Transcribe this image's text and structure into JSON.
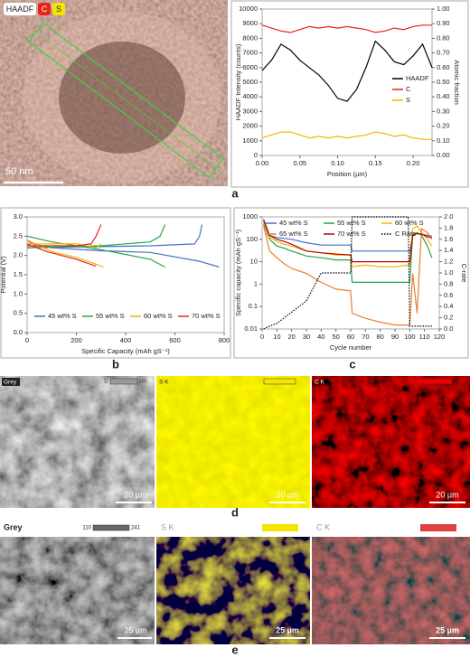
{
  "panel_labels": [
    "a",
    "b",
    "c",
    "d",
    "e"
  ],
  "images": {
    "haadf": {
      "labels": [
        "HAADF",
        "C",
        "S"
      ],
      "scale_bar": "50 nm"
    },
    "d": [
      {
        "title": "Grey",
        "scale_min": "11",
        "scale_max": "255",
        "scale_bar": "20 µm"
      },
      {
        "title": "S K",
        "scale_bar": "20 µm"
      },
      {
        "title": "C K",
        "scale_bar": "20 µm"
      }
    ],
    "e": [
      {
        "title": "Grey",
        "scale_min": "110",
        "scale_max": "241",
        "scale_bar": "25 µm"
      },
      {
        "title": "S K",
        "scale_bar": "25 µm"
      },
      {
        "title": "C K",
        "scale_bar": "25 µm"
      }
    ]
  },
  "chart_data": [
    {
      "type": "line",
      "xlabel": "Position (µm)",
      "ylabel": "HAADF Intensity (counts)",
      "y2label": "Atomic fraction",
      "x": [
        0,
        0.0125,
        0.025,
        0.0375,
        0.05,
        0.0625,
        0.075,
        0.0875,
        0.1,
        0.1125,
        0.125,
        0.1375,
        0.15,
        0.1625,
        0.175,
        0.1875,
        0.2,
        0.2125,
        0.225
      ],
      "xlim": [
        0,
        0.225
      ],
      "xticks": [
        {
          "value": 0,
          "label": "0.00"
        },
        0.05,
        {
          "value": 0.1,
          "label": "0.10"
        },
        0.15,
        {
          "value": 0.2,
          "label": "0.20"
        }
      ],
      "ylim": [
        0,
        10000
      ],
      "yticks": [
        0,
        1000,
        2000,
        3000,
        4000,
        5000,
        6000,
        7000,
        8000,
        9000,
        10000
      ],
      "y2lim": [
        0,
        1
      ],
      "y2ticks": [
        {
          "value": 0,
          "label": "0.00"
        },
        {
          "value": 0.1,
          "label": "0.10"
        },
        {
          "value": 0.2,
          "label": "0.20"
        },
        {
          "value": 0.3,
          "label": "0.30"
        },
        {
          "value": 0.4,
          "label": "0.40"
        },
        {
          "value": 0.5,
          "label": "0.50"
        },
        {
          "value": 0.6,
          "label": "0.60"
        },
        {
          "value": 0.7,
          "label": "0.70"
        },
        {
          "value": 0.8,
          "label": "0.80"
        },
        {
          "value": 0.9,
          "label": "0.90"
        },
        {
          "value": 1,
          "label": "1.00"
        }
      ],
      "legend": "right",
      "series": [
        {
          "name": "HAADF",
          "color": "#000000",
          "values": [
            5800,
            6500,
            7600,
            7200,
            6500,
            6000,
            5500,
            4800,
            3900,
            3700,
            4500,
            6000,
            7800,
            7200,
            6400,
            6200,
            6800,
            7600,
            6000
          ]
        },
        {
          "name": "C",
          "color": "#e8231c",
          "axis": "y2",
          "values": [
            0.89,
            0.87,
            0.85,
            0.84,
            0.86,
            0.88,
            0.87,
            0.88,
            0.87,
            0.88,
            0.87,
            0.86,
            0.84,
            0.85,
            0.87,
            0.86,
            0.88,
            0.89,
            0.89
          ]
        },
        {
          "name": "S",
          "color": "#f5b400",
          "axis": "y2",
          "values": [
            0.12,
            0.14,
            0.16,
            0.16,
            0.14,
            0.12,
            0.13,
            0.12,
            0.13,
            0.12,
            0.13,
            0.14,
            0.16,
            0.15,
            0.13,
            0.14,
            0.12,
            0.11,
            0.11
          ]
        }
      ]
    },
    {
      "type": "line",
      "xlabel": "Specific Capacity (mAh gS⁻¹)",
      "ylabel": "Potential (V)",
      "xlim": [
        0,
        800
      ],
      "xticks": [
        0,
        200,
        400,
        600,
        800
      ],
      "ylim": [
        0,
        3
      ],
      "yticks": [
        {
          "value": 0,
          "label": "0.0"
        },
        0.5,
        {
          "value": 1,
          "label": "1.0"
        },
        1.5,
        {
          "value": 2,
          "label": "2.0"
        },
        2.5,
        {
          "value": 3,
          "label": "3.0"
        }
      ],
      "legend": "bottom",
      "series": [
        {
          "name": "45 wt% S",
          "color": "#4472c4",
          "x": [
            0,
            20,
            100,
            300,
            500,
            700,
            780,
            null,
            0,
            200,
            500,
            680,
            700,
            710
          ],
          "values": [
            2.4,
            2.3,
            2.2,
            2.12,
            2.08,
            1.85,
            1.7,
            null,
            2.2,
            2.22,
            2.25,
            2.3,
            2.5,
            2.8
          ]
        },
        {
          "name": "55 wt% S",
          "color": "#22a34a",
          "x": [
            0,
            100,
            300,
            500,
            560,
            null,
            0,
            300,
            500,
            540,
            560
          ],
          "values": [
            2.5,
            2.35,
            2.15,
            1.9,
            1.7,
            null,
            2.2,
            2.25,
            2.35,
            2.5,
            2.8
          ]
        },
        {
          "name": "60 wt% S",
          "color": "#f5b400",
          "x": [
            0,
            100,
            200,
            290,
            310,
            null,
            0,
            200,
            280,
            300
          ],
          "values": [
            2.4,
            2.1,
            1.95,
            1.75,
            1.7,
            null,
            2.3,
            2.3,
            2.2,
            2.3
          ]
        },
        {
          "name": "70 wt% S",
          "color": "#e8231c",
          "x": [
            0,
            80,
            200,
            280,
            null,
            0,
            200,
            260,
            280,
            300
          ],
          "values": [
            2.3,
            2.1,
            1.9,
            1.72,
            null,
            2.25,
            2.25,
            2.3,
            2.5,
            2.8
          ]
        }
      ]
    },
    {
      "type": "line",
      "xlabel": "Cycle number",
      "ylabel": "Specific capacity (mAh gS⁻¹)",
      "y2label": "C-rate",
      "log": true,
      "x": [
        1,
        5,
        10,
        15,
        20,
        30,
        40,
        50,
        60,
        61,
        70,
        80,
        90,
        99,
        100,
        102,
        105,
        108,
        112,
        115
      ],
      "xlim": [
        0,
        120
      ],
      "xticks": [
        0,
        10,
        20,
        30,
        40,
        50,
        60,
        70,
        80,
        90,
        100,
        110,
        120
      ],
      "ylim": [
        0.01,
        1000
      ],
      "yticks": [
        0.01,
        0.1,
        1,
        10,
        100,
        1000
      ],
      "y2lim": [
        0,
        2
      ],
      "y2ticks": [
        {
          "value": 0,
          "label": "0.0"
        },
        0.2,
        0.4,
        0.6,
        0.8,
        {
          "value": 1,
          "label": "1.0"
        },
        1.2,
        1.4,
        1.6,
        1.8,
        {
          "value": 2,
          "label": "2.0"
        }
      ],
      "legend": "top",
      "series": [
        {
          "name": "45 wt% S",
          "color": "#4472c4",
          "values": [
            800,
            150,
            120,
            110,
            100,
            70,
            55,
            55,
            55,
            30,
            30,
            30,
            30,
            30,
            30,
            150,
            180,
            170,
            150,
            140
          ]
        },
        {
          "name": "55 wt% S",
          "color": "#22a34a",
          "values": [
            500,
            100,
            50,
            40,
            30,
            18,
            15,
            12,
            12,
            1.2,
            1.2,
            1.2,
            1.2,
            1.2,
            1.2,
            150,
            200,
            150,
            50,
            15
          ]
        },
        {
          "name": "60 wt% S",
          "color": "#f5b400",
          "values": [
            600,
            120,
            80,
            60,
            50,
            30,
            25,
            20,
            20,
            6,
            7,
            6,
            6,
            7,
            7,
            300,
            400,
            200,
            100,
            50
          ]
        },
        {
          "name": "65 wt% S",
          "color": "#ed7d31",
          "values": [
            400,
            30,
            15,
            8,
            5,
            3,
            1.2,
            0.6,
            0.5,
            0.05,
            0.03,
            0.02,
            0.015,
            0.015,
            0.015,
            3,
            0.05,
            300,
            200,
            100
          ]
        },
        {
          "name": "70 wt% S",
          "color": "#c00000",
          "values": [
            700,
            150,
            100,
            80,
            60,
            30,
            25,
            22,
            20,
            10,
            10,
            10,
            10,
            10,
            10,
            150,
            180,
            170,
            130,
            120
          ]
        },
        {
          "name": "C Rate",
          "color": "#000000",
          "axis": "y2",
          "style": "dotted",
          "values": [
            0,
            0.05,
            0.1,
            0.2,
            0.3,
            0.5,
            1,
            1,
            1,
            2,
            2,
            2,
            2,
            2,
            0.05,
            0.05,
            0.05,
            0.05,
            0.05,
            0.05
          ]
        }
      ]
    }
  ]
}
